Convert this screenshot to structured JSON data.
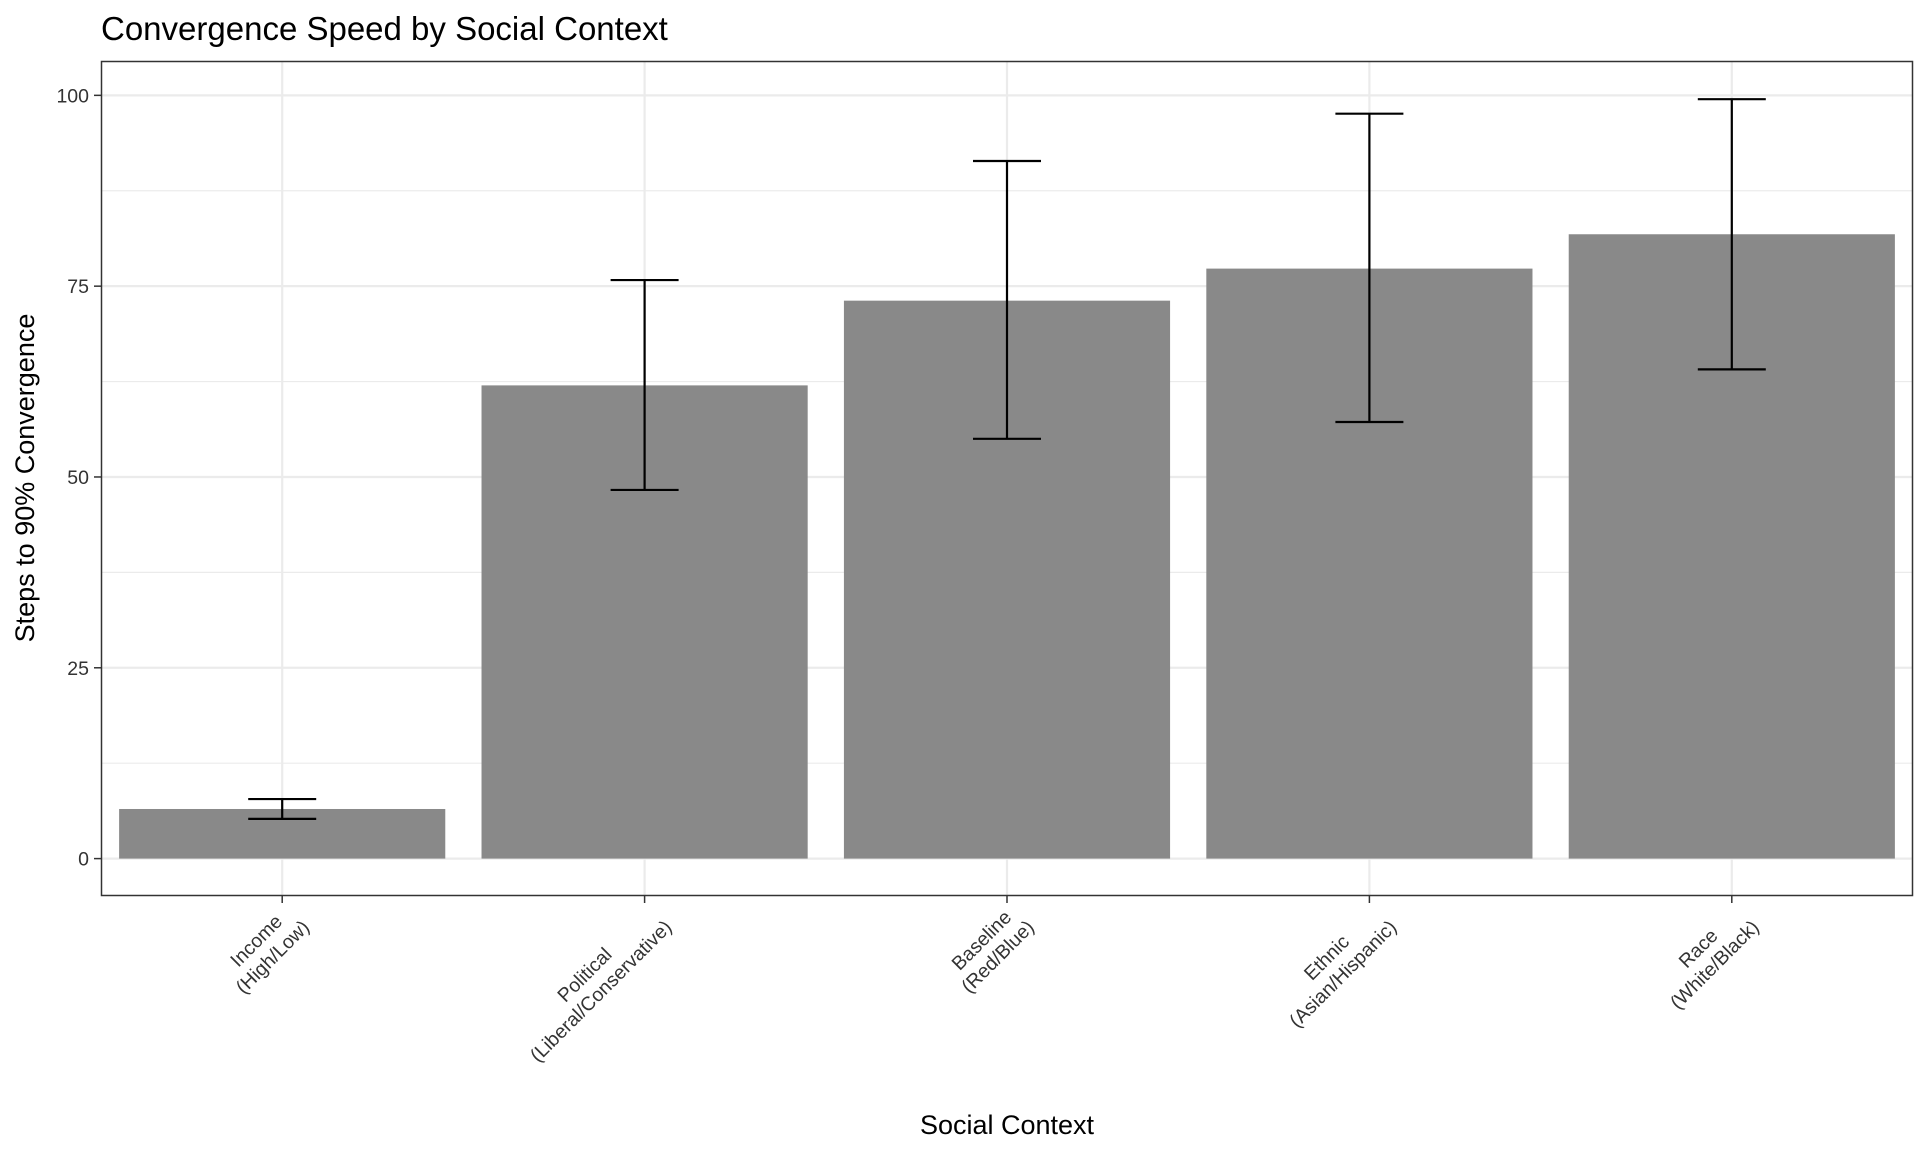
{
  "chart_data": {
    "type": "bar",
    "title": "Convergence Speed by Social Context",
    "xlabel": "Social Context",
    "ylabel": "Steps to 90% Convergence",
    "categories": [
      {
        "line1": "Income",
        "line2": "(High/Low)"
      },
      {
        "line1": "Political",
        "line2": "(Liberal/Conservative)"
      },
      {
        "line1": "Baseline",
        "line2": "(Red/Blue)"
      },
      {
        "line1": "Ethnic",
        "line2": "(Asian/Hispanic)"
      },
      {
        "line1": "Race",
        "line2": "(White/Black)"
      }
    ],
    "values": [
      6.5,
      62.0,
      73.1,
      77.3,
      81.8
    ],
    "error_low": [
      5.2,
      48.3,
      55.0,
      57.2,
      64.1
    ],
    "error_high": [
      7.8,
      75.8,
      91.4,
      97.6,
      99.5
    ],
    "yticks": [
      0,
      25,
      50,
      75,
      100
    ],
    "ylim": [
      -4.9,
      104.5
    ],
    "grid": true,
    "legend": "none",
    "colors": {
      "bar": "#898989",
      "grid": "#ebebeb",
      "panel_border": "#333333",
      "errorbar": "#000000"
    }
  }
}
